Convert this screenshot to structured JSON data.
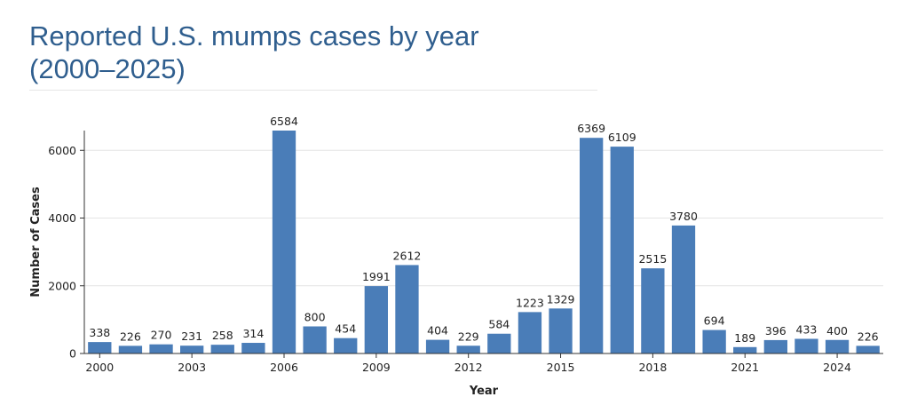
{
  "title": {
    "line1": "Reported U.S. mumps cases by year",
    "line2": "(2000–2025)"
  },
  "colors": {
    "bar": "#4a7db8",
    "title": "#2f5e8e",
    "grid": "#e4e4e4",
    "axis": "#333333",
    "text": "#222222"
  },
  "chart_data": {
    "type": "bar",
    "title": "Reported U.S. mumps cases by year (2000–2025)",
    "xlabel": "Year",
    "ylabel": "Number of Cases",
    "ylim": [
      0,
      6584
    ],
    "xlim": [
      1999.5,
      2025.5
    ],
    "grid": true,
    "yticks": [
      0,
      2000,
      4000,
      6000
    ],
    "xticks": [
      2000,
      2003,
      2006,
      2009,
      2012,
      2015,
      2018,
      2021,
      2024
    ],
    "categories": [
      2000,
      2001,
      2002,
      2003,
      2004,
      2005,
      2006,
      2007,
      2008,
      2009,
      2010,
      2011,
      2012,
      2013,
      2014,
      2015,
      2016,
      2017,
      2018,
      2019,
      2020,
      2021,
      2022,
      2023,
      2024,
      2025
    ],
    "values": [
      338,
      226,
      270,
      231,
      258,
      314,
      6584,
      800,
      454,
      1991,
      2612,
      404,
      229,
      584,
      1223,
      1329,
      6369,
      6109,
      2515,
      3780,
      694,
      189,
      396,
      433,
      400,
      226
    ]
  }
}
